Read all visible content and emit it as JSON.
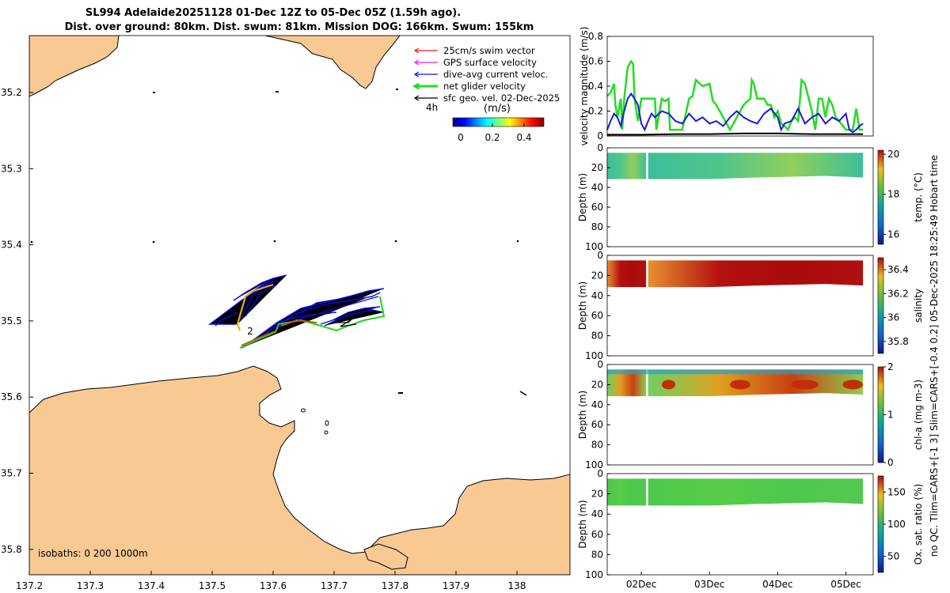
{
  "title": {
    "line1": "SL994 Adelaide20251128 01-Dec 12Z to 05-Dec 05Z (1.59h ago).",
    "line2": "Dist. over ground: 80km. Dist. swum: 81km. Mission DOG: 166km. Swum: 155km"
  },
  "side_label": "no QC. Tlim=CARS+[-1 3] Slim=CARS+[-0.4 0.2] 05-Dec-2025 18:25:49 Hobart time",
  "map": {
    "legend": [
      {
        "label": "25cm/s swim vector",
        "color": "#e02020"
      },
      {
        "label": "GPS surface velocity",
        "color": "#e020e0"
      },
      {
        "label": "dive-avg current veloc.",
        "color": "#1010e0"
      },
      {
        "label": "net glider velocity",
        "color": "#20e020"
      },
      {
        "label": "sfc geo. vel. 02-Dec-2025",
        "color": "#000000"
      }
    ],
    "time_marker": "4h",
    "colorbar_title": "(m/s)",
    "colorbar_ticks": [
      "0",
      "0.2",
      "0.4"
    ],
    "track_label": "2",
    "isobaths_label": "isobaths: 0   200  1000m",
    "x_ticks": [
      "137.2",
      "137.3",
      "137.4",
      "137.5",
      "137.6",
      "137.7",
      "137.8",
      "137.9",
      "138"
    ],
    "y_ticks": [
      "35.2",
      "35.3",
      "35.4",
      "35.5",
      "35.6",
      "35.7",
      "35.8"
    ],
    "land_color": "#f9c994"
  },
  "chart_data": [
    {
      "type": "line",
      "title": "",
      "ylabel": "velocity magnitude (m/s)",
      "ylim": [
        0,
        0.8
      ],
      "y_ticks": [
        "0",
        "0.2",
        "0.4",
        "0.6",
        "0.8"
      ],
      "x_range_days": [
        1.5,
        5.4
      ],
      "series": [
        {
          "name": "net glider velocity",
          "color": "#22dd22",
          "x": [
            1.5,
            1.55,
            1.6,
            1.62,
            1.65,
            1.7,
            1.72,
            1.75,
            1.8,
            1.85,
            1.88,
            1.9,
            1.95,
            2.0,
            2.1,
            2.2,
            2.22,
            2.3,
            2.35,
            2.4,
            2.42,
            2.5,
            2.6,
            2.7,
            2.75,
            2.8,
            2.9,
            3.0,
            3.05,
            3.1,
            3.3,
            3.5,
            3.6,
            3.62,
            3.65,
            3.7,
            3.75,
            3.8,
            3.85,
            3.9,
            3.95,
            4.0,
            4.05,
            4.1,
            4.15,
            4.2,
            4.25,
            4.3,
            4.35,
            4.4,
            4.5,
            4.55,
            4.6,
            4.65,
            4.7,
            4.75,
            4.8,
            4.85,
            4.9,
            5.0,
            5.1,
            5.15,
            5.2,
            5.25
          ],
          "y": [
            0.32,
            0.35,
            0.42,
            0.25,
            0.15,
            0.3,
            0.05,
            0.3,
            0.55,
            0.6,
            0.58,
            0.3,
            0.12,
            0.3,
            0.3,
            0.3,
            0.05,
            0.3,
            0.28,
            0.3,
            0.05,
            0.05,
            0.05,
            0.3,
            0.32,
            0.45,
            0.4,
            0.42,
            0.28,
            0.25,
            0.05,
            0.25,
            0.3,
            0.45,
            0.42,
            0.3,
            0.3,
            0.3,
            0.25,
            0.25,
            0.15,
            0.2,
            0.1,
            0.08,
            0.05,
            0.12,
            0.15,
            0.12,
            0.45,
            0.42,
            0.2,
            0.05,
            0.3,
            0.3,
            0.15,
            0.3,
            0.25,
            0.15,
            0.12,
            0.05,
            0.05,
            0.22,
            0.05,
            0.05
          ]
        },
        {
          "name": "dive-avg current veloc.",
          "color": "#1a1adb",
          "x": [
            1.5,
            1.55,
            1.6,
            1.65,
            1.7,
            1.75,
            1.8,
            1.85,
            1.9,
            1.95,
            2.0,
            2.05,
            2.1,
            2.15,
            2.2,
            2.3,
            2.4,
            2.5,
            2.6,
            2.7,
            2.8,
            2.9,
            3.0,
            3.1,
            3.2,
            3.3,
            3.4,
            3.5,
            3.6,
            3.7,
            3.8,
            3.9,
            4.0,
            4.05,
            4.1,
            4.2,
            4.3,
            4.4,
            4.5,
            4.6,
            4.7,
            4.8,
            4.9,
            5.0,
            5.05,
            5.1,
            5.15,
            5.2,
            5.25
          ],
          "y": [
            0.05,
            0.12,
            0.18,
            0.15,
            0.08,
            0.2,
            0.3,
            0.34,
            0.3,
            0.25,
            0.1,
            0.05,
            0.12,
            0.18,
            0.15,
            0.2,
            0.18,
            0.12,
            0.1,
            0.18,
            0.12,
            0.15,
            0.1,
            0.12,
            0.08,
            0.15,
            0.2,
            0.15,
            0.12,
            0.1,
            0.18,
            0.22,
            0.15,
            0.05,
            0.1,
            0.12,
            0.22,
            0.1,
            0.15,
            0.18,
            0.1,
            0.15,
            0.12,
            0.18,
            0.05,
            0.03,
            0.05,
            0.08,
            0.1
          ]
        },
        {
          "name": "sfc geo. vel.",
          "color": "#000000",
          "x": [
            1.5,
            2.0,
            2.5,
            3.0,
            3.5,
            4.0,
            4.5,
            5.0,
            5.25
          ],
          "y": [
            0.01,
            0.01,
            0.015,
            0.015,
            0.02,
            0.02,
            0.015,
            0.015,
            0.015
          ]
        }
      ]
    },
    {
      "type": "heatmap",
      "ylabel": "Depth (m)",
      "ylim": [
        100,
        0
      ],
      "y_ticks": [
        "0",
        "20",
        "40",
        "60",
        "80",
        "100"
      ],
      "colorbar_label": "temp. (°C)",
      "colorbar_ticks": [
        "16",
        "18",
        "20"
      ],
      "clim": [
        15.5,
        20.2
      ],
      "depth_range_m": [
        5,
        30
      ],
      "sample_values": [
        17.2,
        17.4,
        17.6,
        17.8,
        17.5
      ]
    },
    {
      "type": "heatmap",
      "ylabel": "Depth (m)",
      "ylim": [
        100,
        0
      ],
      "y_ticks": [
        "0",
        "20",
        "40",
        "60",
        "80",
        "100"
      ],
      "colorbar_label": "salinity",
      "colorbar_ticks": [
        "35.8",
        "36",
        "36.2",
        "36.4"
      ],
      "clim": [
        35.7,
        36.5
      ],
      "depth_range_m": [
        5,
        30
      ],
      "sample_values": [
        36.3,
        36.35,
        36.45,
        36.5,
        36.5
      ]
    },
    {
      "type": "heatmap",
      "ylabel": "Depth (m)",
      "ylim": [
        100,
        0
      ],
      "y_ticks": [
        "0",
        "20",
        "40",
        "60",
        "80",
        "100"
      ],
      "colorbar_label": "chl-a (mg m-3)",
      "colorbar_ticks": [
        "0",
        "1",
        "2"
      ],
      "clim": [
        0,
        2
      ],
      "depth_range_m": [
        5,
        30
      ],
      "sample_values": [
        0.8,
        1.4,
        1.7,
        1.9,
        1.2
      ]
    },
    {
      "type": "heatmap",
      "ylabel": "Depth (m)",
      "ylim": [
        100,
        0
      ],
      "y_ticks": [
        "0",
        "20",
        "40",
        "60",
        "80",
        "100"
      ],
      "colorbar_label": "Ox. sat. ratio (%)",
      "colorbar_ticks": [
        "50",
        "100",
        "150"
      ],
      "clim": [
        25,
        175
      ],
      "depth_range_m": [
        5,
        30
      ],
      "sample_values": [
        100,
        102,
        104,
        100,
        98
      ],
      "x_ticks": [
        "02Dec",
        "03Dec",
        "04Dec",
        "05Dec"
      ],
      "x_tick_days": [
        2,
        3,
        4,
        5
      ]
    }
  ]
}
